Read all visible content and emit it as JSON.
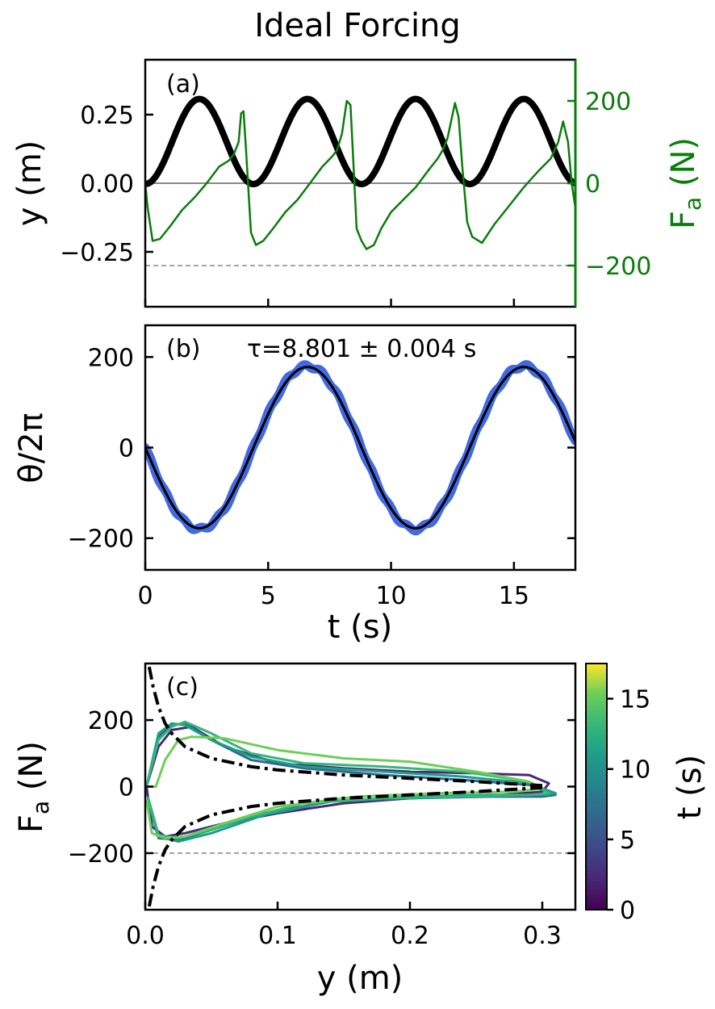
{
  "title": "Ideal Forcing",
  "colors": {
    "green": "#0a7d0a",
    "blue": "#4169e1",
    "black": "#000000",
    "gray": "#888888"
  },
  "chart_data": [
    {
      "panel": "(a)",
      "type": "line",
      "xlim": [
        0,
        17.5
      ],
      "ylim": [
        -0.45,
        0.45
      ],
      "ylabel": "y (m)",
      "yticks": [
        -0.25,
        0.0,
        0.25
      ],
      "ytick_labels": [
        "−0.25",
        "0.00",
        "0.25"
      ],
      "y2label": "Fa (N)",
      "y2_main": "F",
      "y2_sub": "a",
      "y2_rest": " (N)",
      "y2lim": [
        -300,
        300
      ],
      "y2ticks": [
        -200,
        0,
        200
      ],
      "y2tick_labels": [
        "−200",
        "0",
        "200"
      ],
      "reference_lines": [
        {
          "axis": "y",
          "value": 0.0,
          "style": "solid"
        },
        {
          "axis": "y",
          "value": -0.3,
          "style": "dashed"
        }
      ],
      "series": [
        {
          "name": "y",
          "axis": "left",
          "color": "black",
          "period": 4.4,
          "amplitude": 0.155,
          "offset": 0.152
        },
        {
          "name": "Fa",
          "axis": "right",
          "color": "green",
          "x": [
            0,
            0.1,
            0.3,
            0.6,
            1.0,
            1.5,
            2.0,
            2.5,
            3.0,
            3.4,
            3.6,
            3.8,
            3.9,
            4.0,
            4.1,
            4.3,
            4.5,
            4.8,
            5.2,
            5.7,
            6.2,
            6.7,
            7.2,
            7.6,
            7.8,
            8.0,
            8.2,
            8.35,
            8.45,
            8.6,
            8.8,
            9.0,
            9.3,
            9.6,
            10.0,
            10.5,
            11.0,
            11.5,
            11.9,
            12.1,
            12.3,
            12.6,
            12.75,
            12.9,
            13.1,
            13.3,
            13.7,
            14.2,
            14.8,
            15.4,
            16.0,
            16.5,
            16.8,
            17.0,
            17.2,
            17.35,
            17.5
          ],
          "values": [
            0,
            -60,
            -140,
            -135,
            -105,
            -65,
            -35,
            0,
            40,
            55,
            70,
            100,
            170,
            175,
            80,
            -120,
            -150,
            -140,
            -110,
            -70,
            -40,
            0,
            40,
            65,
            80,
            120,
            200,
            190,
            70,
            -110,
            -140,
            -160,
            -150,
            -110,
            -70,
            -40,
            -10,
            30,
            60,
            80,
            110,
            195,
            160,
            40,
            -95,
            -130,
            -145,
            -100,
            -55,
            -10,
            30,
            60,
            100,
            150,
            100,
            0,
            -60
          ]
        }
      ]
    },
    {
      "panel": "(b)",
      "type": "line",
      "annotation": "τ=8.801 ± 0.004 s",
      "xlim": [
        0,
        17.5
      ],
      "ylim": [
        -270,
        270
      ],
      "ylabel": "θ/2π",
      "yticks": [
        -200,
        0,
        200
      ],
      "ytick_labels": [
        "−200",
        "0",
        "200"
      ],
      "xlabel": "t (s)",
      "xticks": [
        0,
        5,
        10,
        15
      ],
      "xtick_labels": [
        "0",
        "5",
        "10",
        "15"
      ],
      "series": [
        {
          "name": "measured",
          "color": "blue",
          "period": 8.801,
          "amplitude": 180
        },
        {
          "name": "fit",
          "color": "black",
          "period": 8.801,
          "amplitude": 178
        }
      ]
    },
    {
      "panel": "(c)",
      "type": "line",
      "xlim": [
        0,
        0.325
      ],
      "ylim": [
        -370,
        370
      ],
      "xlabel": "y (m)",
      "xticks": [
        0.0,
        0.1,
        0.2,
        0.3
      ],
      "xtick_labels": [
        "0.0",
        "0.1",
        "0.2",
        "0.3"
      ],
      "ylabel": "Fa (N)",
      "ylabel_main": "F",
      "ylabel_sub": "a",
      "ylabel_rest": " (N)",
      "yticks": [
        -200,
        0,
        200
      ],
      "ytick_labels": [
        "−200",
        "0",
        "200"
      ],
      "reference_lines": [
        {
          "axis": "y",
          "value": -200,
          "style": "dashed"
        }
      ],
      "curves": [
        {
          "name": "upper-model",
          "style": "dashdot",
          "x": [
            0.003,
            0.006,
            0.01,
            0.015,
            0.02,
            0.03,
            0.05,
            0.08,
            0.1,
            0.15,
            0.2,
            0.25,
            0.3
          ],
          "values": [
            360,
            300,
            240,
            190,
            160,
            120,
            85,
            60,
            50,
            35,
            25,
            15,
            3
          ]
        },
        {
          "name": "lower-model",
          "style": "dashdot",
          "x": [
            0.003,
            0.006,
            0.01,
            0.015,
            0.02,
            0.03,
            0.05,
            0.08,
            0.1,
            0.15,
            0.2,
            0.25,
            0.3
          ],
          "values": [
            -360,
            -300,
            -240,
            -190,
            -160,
            -120,
            -85,
            -60,
            -50,
            -35,
            -25,
            -15,
            -3
          ]
        },
        {
          "name": "loop-t2",
          "t": 2,
          "x": [
            0.001,
            0.01,
            0.02,
            0.035,
            0.06,
            0.1,
            0.15,
            0.2,
            0.25,
            0.29,
            0.305,
            0.3,
            0.27,
            0.2,
            0.15,
            0.1,
            0.06,
            0.03,
            0.015,
            0.005,
            0.001
          ],
          "values": [
            0,
            120,
            170,
            180,
            120,
            70,
            55,
            45,
            40,
            35,
            10,
            -15,
            -25,
            -35,
            -50,
            -80,
            -110,
            -140,
            -150,
            -120,
            0
          ]
        },
        {
          "name": "loop-t6",
          "t": 6,
          "x": [
            0.001,
            0.01,
            0.02,
            0.03,
            0.05,
            0.08,
            0.12,
            0.18,
            0.24,
            0.29,
            0.31,
            0.3,
            0.26,
            0.2,
            0.14,
            0.09,
            0.05,
            0.025,
            0.01,
            0.002
          ],
          "values": [
            0,
            150,
            185,
            190,
            140,
            80,
            55,
            35,
            20,
            5,
            -25,
            -30,
            -30,
            -35,
            -45,
            -80,
            -130,
            -160,
            -155,
            -40
          ]
        },
        {
          "name": "loop-t10",
          "t": 10,
          "x": [
            0.001,
            0.01,
            0.02,
            0.03,
            0.05,
            0.08,
            0.12,
            0.18,
            0.24,
            0.29,
            0.31,
            0.3,
            0.26,
            0.2,
            0.14,
            0.09,
            0.05,
            0.025,
            0.01,
            0.002
          ],
          "values": [
            0,
            160,
            190,
            185,
            140,
            90,
            60,
            45,
            30,
            10,
            -20,
            -25,
            -25,
            -30,
            -45,
            -85,
            -140,
            -165,
            -150,
            -40
          ]
        },
        {
          "name": "loop-t13",
          "t": 13,
          "x": [
            0.001,
            0.01,
            0.02,
            0.03,
            0.05,
            0.08,
            0.12,
            0.18,
            0.24,
            0.29,
            0.305,
            0.29,
            0.24,
            0.18,
            0.12,
            0.08,
            0.05,
            0.025,
            0.01,
            0.002
          ],
          "values": [
            0,
            140,
            180,
            195,
            160,
            100,
            70,
            60,
            45,
            15,
            -20,
            -25,
            -30,
            -35,
            -50,
            -90,
            -130,
            -155,
            -145,
            -30
          ]
        },
        {
          "name": "loop-t16",
          "t": 16,
          "x": [
            0.001,
            0.008,
            0.015,
            0.025,
            0.035,
            0.06,
            0.1,
            0.15,
            0.2,
            0.25,
            0.29,
            0.3,
            0.28,
            0.22,
            0.16,
            0.1,
            0.06,
            0.03,
            0.015,
            0.005,
            0.001
          ],
          "values": [
            0,
            0,
            80,
            140,
            150,
            145,
            110,
            85,
            75,
            45,
            15,
            -5,
            -15,
            -20,
            -30,
            -60,
            -110,
            -150,
            -155,
            -140,
            -40
          ]
        }
      ],
      "colorbar": {
        "label": "t (s)",
        "range": [
          0,
          17.5
        ],
        "ticks": [
          0,
          5,
          10,
          15
        ],
        "tick_labels": [
          "0",
          "5",
          "10",
          "15"
        ],
        "colormap": "viridis"
      }
    }
  ]
}
